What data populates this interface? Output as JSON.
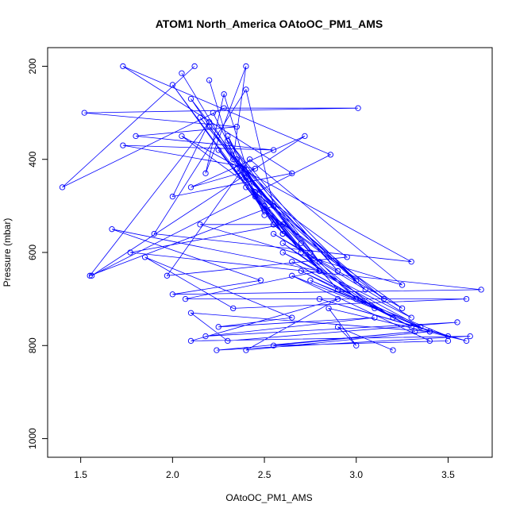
{
  "chart_data": {
    "type": "line",
    "title": "ATOM1 North_America OAtoOC_PM1_AMS",
    "xlabel": "OAtoOC_PM1_AMS",
    "ylabel": "Pressure (mbar)",
    "xlim": [
      1.32,
      3.74
    ],
    "ylim": [
      1040,
      160
    ],
    "y_reversed": true,
    "grid": false,
    "legend": "none",
    "x_ticks": [
      "1.5",
      "2.0",
      "2.5",
      "3.0",
      "3.5"
    ],
    "y_ticks": [
      "200",
      "400",
      "600",
      "800",
      "1000"
    ],
    "line_color": "#0000ff",
    "marker": "open-circle",
    "series": [
      {
        "x": [
          2.12,
          1.4,
          2.28,
          3.01,
          1.52,
          2.35,
          1.8,
          2.55,
          1.73,
          2.45,
          2.1,
          2.72,
          1.56,
          2.86,
          1.73,
          2.65,
          2.0,
          2.2,
          1.55,
          2.55,
          2.4,
          1.9,
          3.3,
          2.05,
          2.95,
          1.97,
          2.42,
          3.25,
          2.15,
          2.6,
          1.77,
          3.68,
          2.0,
          2.48,
          1.67,
          2.8,
          2.07,
          3.6,
          2.33,
          1.85,
          2.65,
          2.25,
          3.1,
          2.18,
          3.55,
          2.3,
          2.1,
          3.4,
          2.4,
          2.9,
          2.1,
          3.62,
          2.24,
          3.32,
          2.55,
          3.5
        ],
        "y": [
          200,
          460,
          290,
          290,
          300,
          330,
          350,
          380,
          370,
          420,
          460,
          350,
          650,
          390,
          200,
          430,
          480,
          320,
          650,
          500,
          250,
          560,
          620,
          350,
          610,
          650,
          400,
          670,
          540,
          540,
          600,
          680,
          690,
          660,
          550,
          640,
          700,
          700,
          720,
          610,
          740,
          760,
          740,
          780,
          750,
          790,
          730,
          770,
          810,
          700,
          790,
          780,
          810,
          770,
          800,
          790
        ]
      },
      {
        "x": [
          2.2,
          2.33,
          2.4,
          2.18,
          2.28,
          2.45,
          2.22,
          2.5,
          2.3,
          2.6,
          2.25,
          2.7,
          2.35,
          2.8,
          2.4,
          2.9,
          2.5,
          3.0,
          2.55,
          3.1,
          2.6,
          3.2,
          2.65,
          3.3,
          2.7,
          3.4,
          2.75,
          3.5,
          2.8,
          3.6,
          2.85,
          3.0,
          2.9,
          3.2
        ],
        "y": [
          230,
          400,
          200,
          430,
          260,
          480,
          300,
          520,
          350,
          560,
          380,
          600,
          420,
          640,
          460,
          680,
          500,
          700,
          540,
          720,
          580,
          740,
          620,
          760,
          640,
          770,
          660,
          780,
          700,
          790,
          720,
          800,
          760,
          810
        ]
      },
      {
        "x": [
          2.05,
          2.55,
          2.0,
          2.6,
          2.1,
          2.7,
          2.15,
          2.75,
          2.2,
          2.8,
          2.3,
          2.9,
          2.35,
          3.0,
          2.4,
          3.05,
          2.45,
          3.15,
          2.5,
          3.25,
          2.55,
          3.3,
          2.6,
          3.35,
          2.65,
          3.4
        ],
        "y": [
          215,
          540,
          240,
          560,
          270,
          580,
          310,
          600,
          330,
          620,
          360,
          640,
          400,
          660,
          440,
          680,
          470,
          700,
          510,
          720,
          560,
          740,
          600,
          760,
          650,
          790
        ]
      }
    ]
  }
}
